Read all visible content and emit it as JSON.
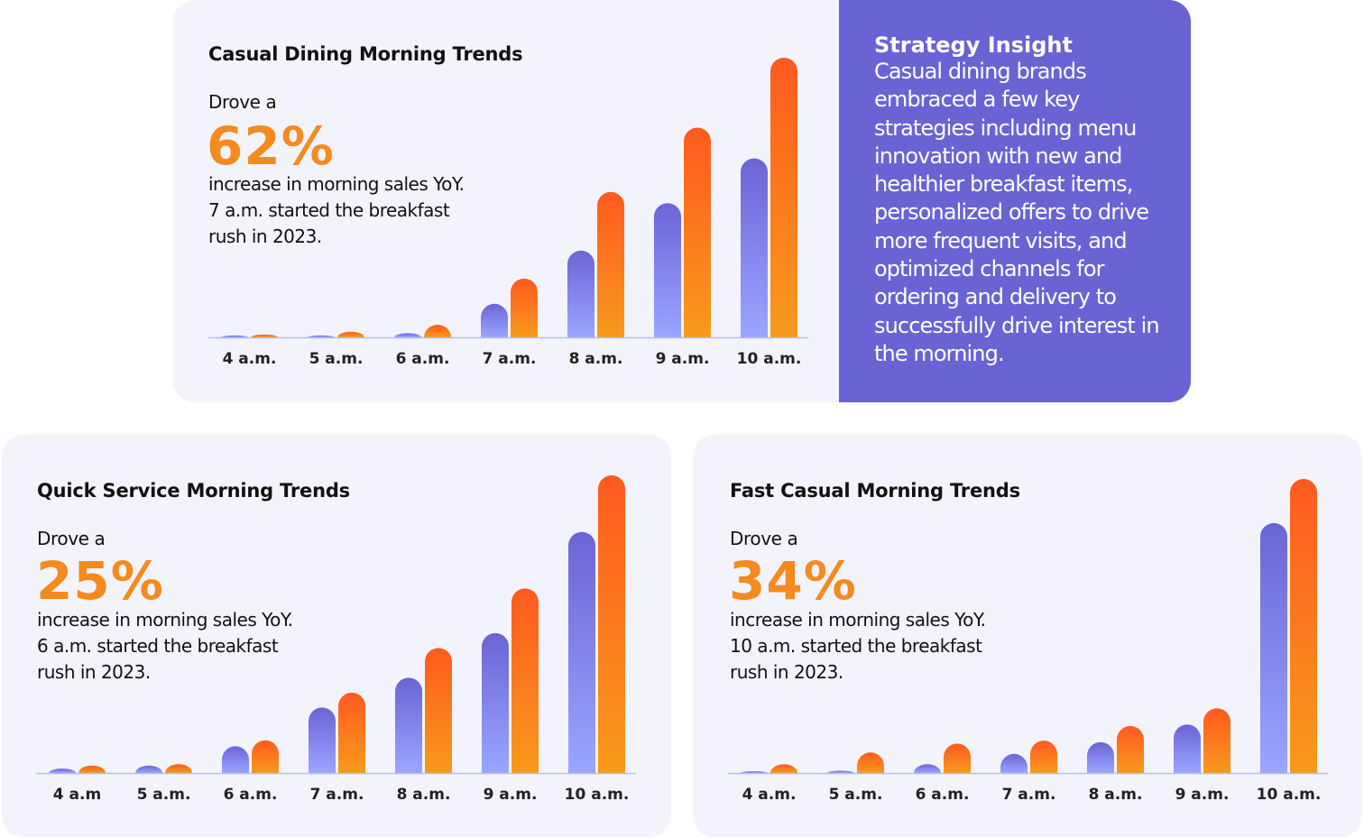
{
  "colors": {
    "accent_orange": "#f58a1f",
    "insight_bg": "#6a63d4",
    "card_bg": "#f3f4fb",
    "bar_purple_top": "#6b64d6",
    "bar_purple_bottom": "#9aa6ff",
    "bar_orange_top": "#ff5a1f",
    "bar_orange_bottom": "#f79a1c"
  },
  "casual": {
    "title": "Casual Dining Morning Trends",
    "lead": "Drove a",
    "stat": "62%",
    "desc": "increase in morning sales YoY. 7 a.m. started the breakfast rush in 2023."
  },
  "quick": {
    "title": "Quick Service Morning Trends",
    "lead": "Drove a",
    "stat": "25%",
    "desc": "increase in morning sales YoY. 6 a.m. started the breakfast rush in 2023."
  },
  "fast": {
    "title": "Fast Casual Morning Trends",
    "lead": "Drove a",
    "stat": "34%",
    "desc": "increase in morning sales YoY. 10 a.m. started the breakfast rush in 2023."
  },
  "insight": {
    "title": "Strategy Insight",
    "body": "Casual dining brands embraced a few key strategies including menu innovation with new and healthier breakfast items, personalized offers to drive more frequent visits, and optimized channels for ordering and delivery to successfully drive interest in the morning."
  },
  "chart_data": [
    {
      "type": "bar",
      "categories": [
        "4 a.m.",
        "5 a.m.",
        "6 a.m.",
        "7 a.m.",
        "8 a.m.",
        "9 a.m.",
        "10 a.m."
      ],
      "series": [
        {
          "values": [
            0.7,
            0.7,
            1.5,
            12,
            31,
            48,
            64
          ]
        },
        {
          "values": [
            1,
            2,
            4.5,
            21,
            52,
            75,
            100
          ]
        }
      ],
      "ylim": [
        0,
        100
      ]
    },
    {
      "type": "bar",
      "categories": [
        "4 a.m",
        "5 a.m.",
        "6 a.m.",
        "7 a.m.",
        "8 a.m.",
        "9 a.m.",
        "10 a.m."
      ],
      "series": [
        {
          "values": [
            1.5,
            2.5,
            9,
            22,
            32,
            47,
            81
          ]
        },
        {
          "values": [
            2.5,
            3,
            11,
            27,
            42,
            62,
            100
          ]
        }
      ],
      "ylim": [
        0,
        100
      ]
    },
    {
      "type": "bar",
      "categories": [
        "4 a.m.",
        "5 a.m.",
        "6 a.m.",
        "7 a.m.",
        "8 a.m.",
        "9 a.m.",
        "10 a.m."
      ],
      "series": [
        {
          "values": [
            0.6,
            0.8,
            3,
            6.5,
            10.5,
            16.5,
            85
          ]
        },
        {
          "values": [
            3,
            7,
            10,
            11,
            16,
            22,
            100
          ]
        }
      ],
      "ylim": [
        0,
        100
      ]
    }
  ]
}
